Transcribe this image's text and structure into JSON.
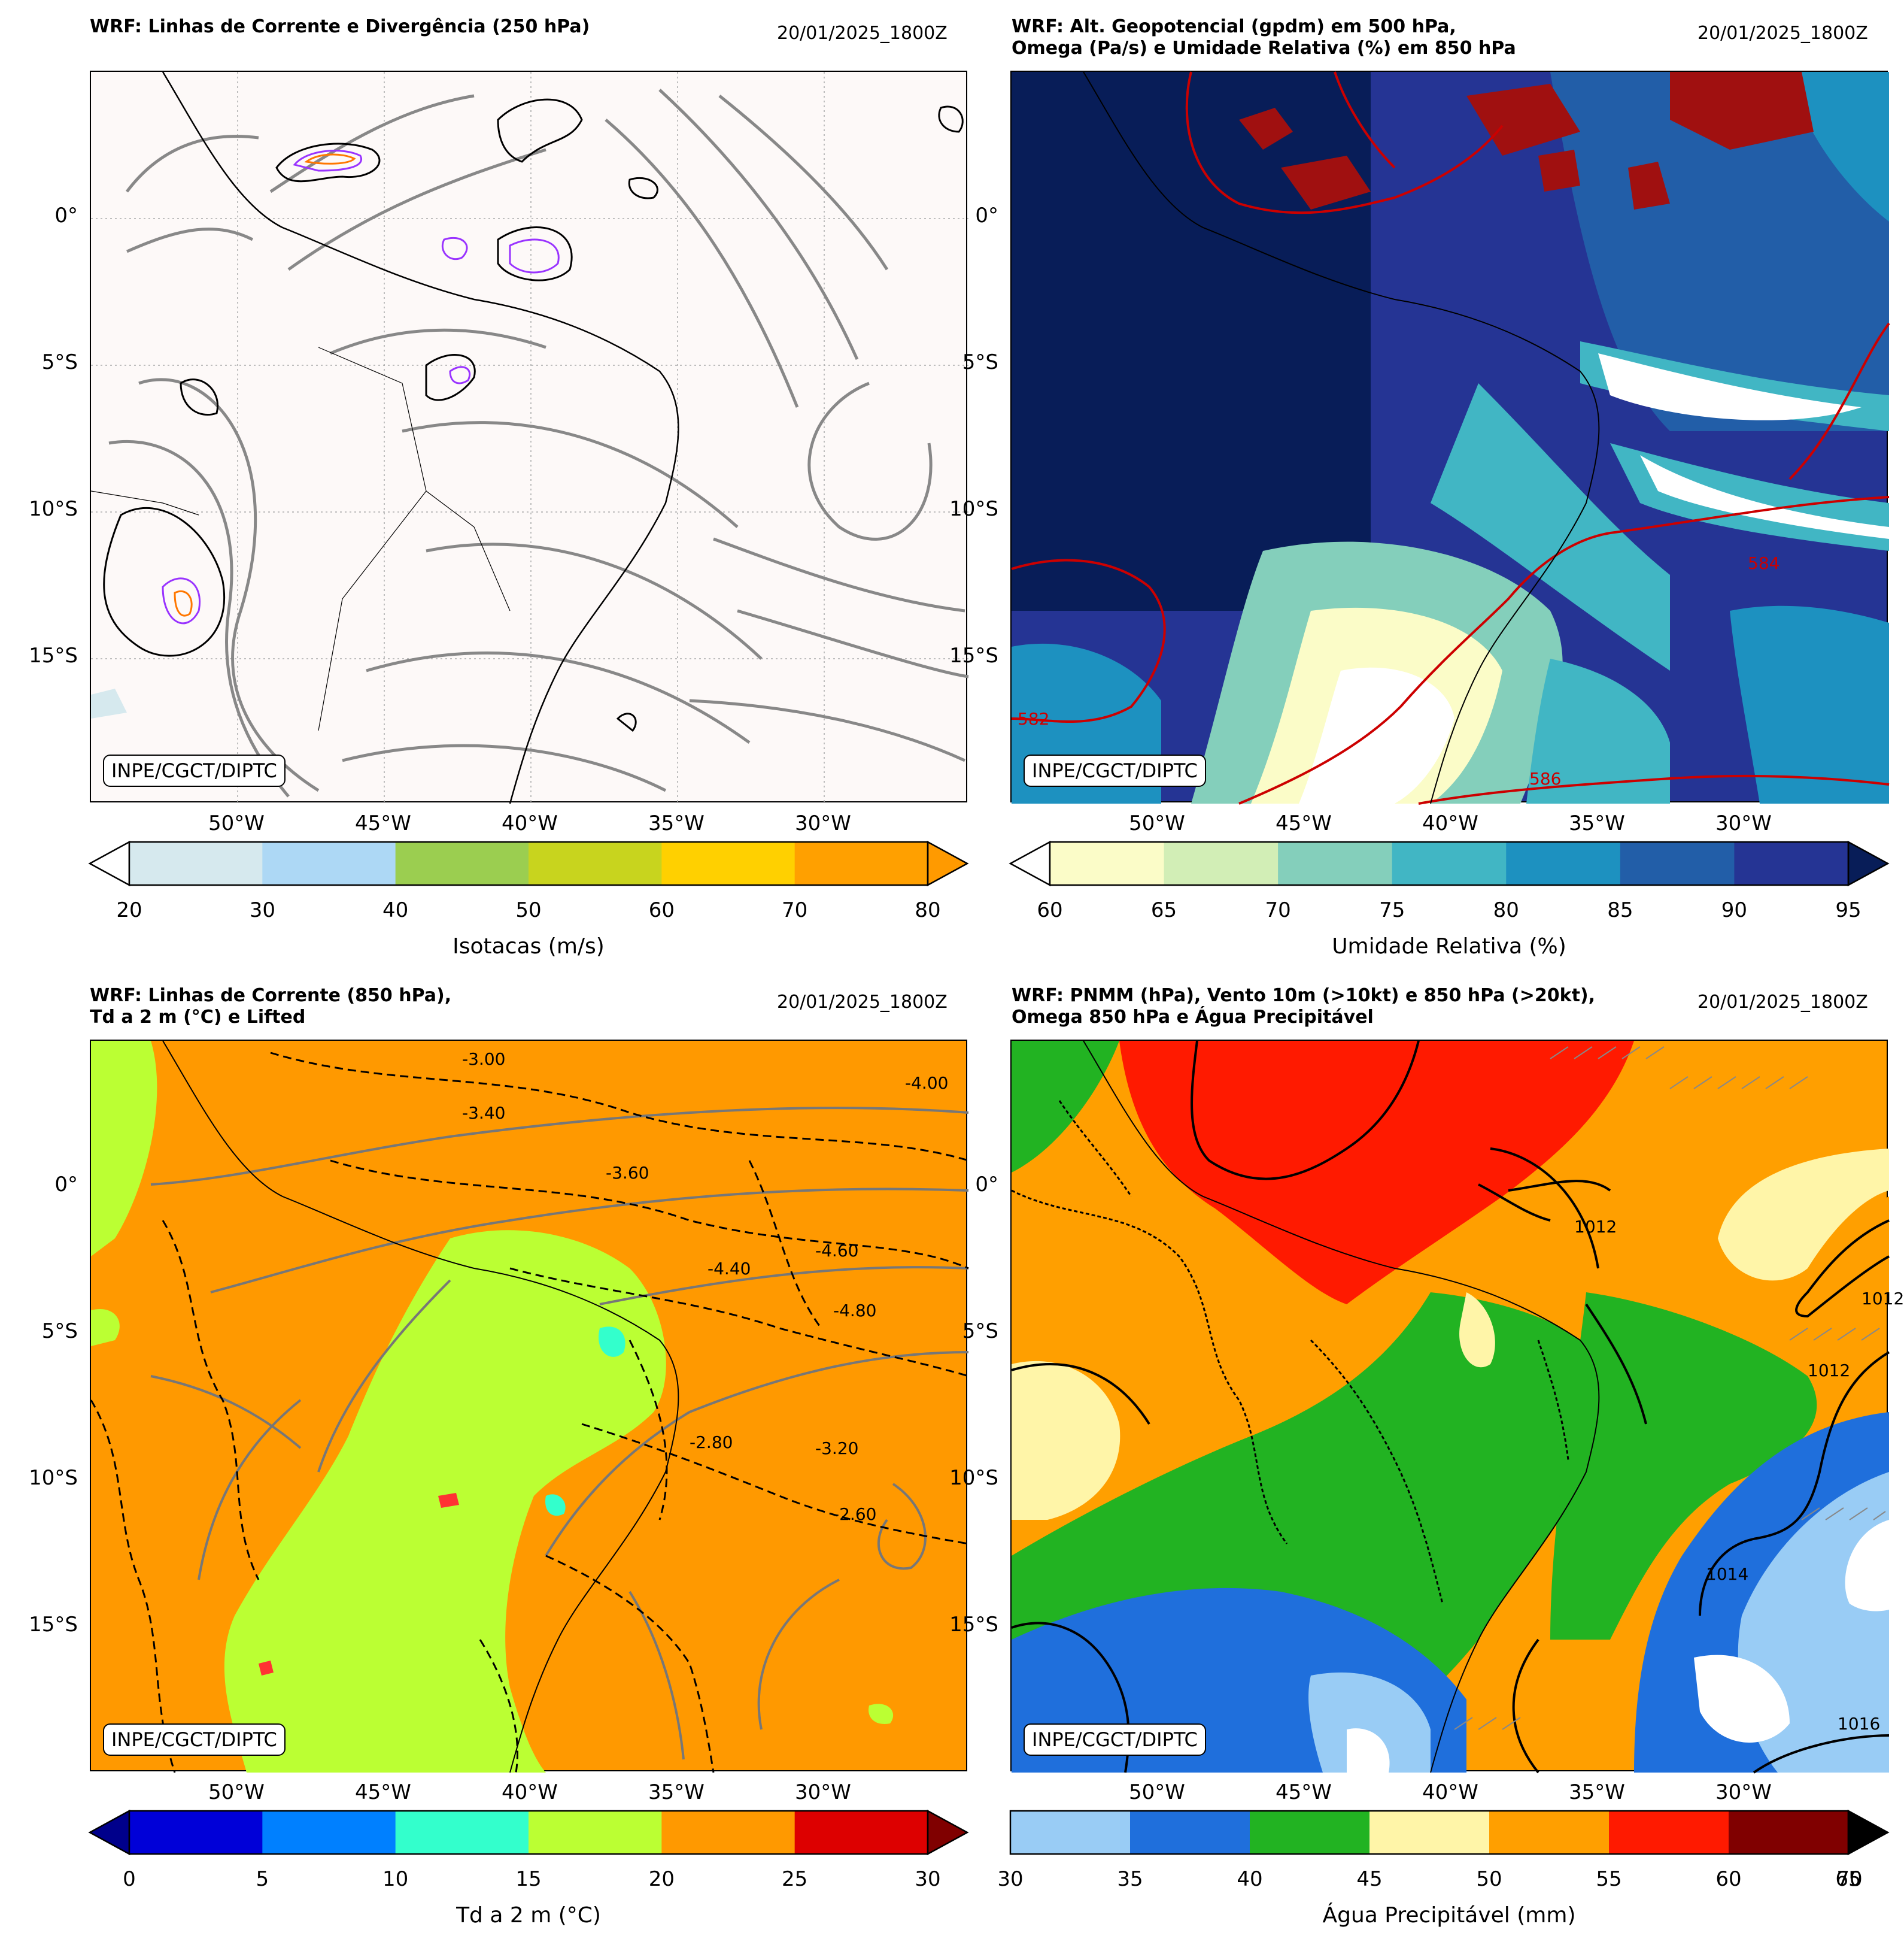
{
  "panels": [
    {
      "title_line1": "WRF: Linhas de Corrente e Divergência (250 hPa)",
      "title_line2": "",
      "date": "20/01/2025_1800Z",
      "watermark": "INPE/CGCT/DIPTC",
      "colorbar_label": "Isotacas (m/s)",
      "ticks": [
        "20",
        "30",
        "40",
        "50",
        "60",
        "70",
        "80"
      ],
      "colors": [
        "#d6e9ee",
        "#add8f5",
        "#9bce50",
        "#c8d41e",
        "#ffd000",
        "#ffa000"
      ],
      "extend_low": "#ffffff",
      "extend_high": "#ff9a00"
    },
    {
      "title_line1": "WRF: Alt. Geopotencial (gpdm) em 500 hPa,",
      "title_line2": "Omega (Pa/s) e Umidade Relativa (%) em 850 hPa",
      "date": "20/01/2025_1800Z",
      "watermark": "INPE/CGCT/DIPTC",
      "colorbar_label": "Umidade Relativa (%)",
      "ticks": [
        "60",
        "65",
        "70",
        "75",
        "80",
        "85",
        "90",
        "95"
      ],
      "colors": [
        "#fbfcc8",
        "#d2eeb6",
        "#84cfbb",
        "#41b6c4",
        "#1d91c0",
        "#225ea8",
        "#253494"
      ],
      "extend_low": "#ffffff",
      "extend_high": "#081d58",
      "contour_labels": [
        "584",
        "586",
        "582"
      ]
    },
    {
      "title_line1": "WRF: Linhas de Corrente (850 hPa),",
      "title_line2": "Td a 2 m (°C) e Lifted",
      "date": "20/01/2025_1800Z",
      "watermark": "INPE/CGCT/DIPTC",
      "colorbar_label": "Td a 2 m (°C)",
      "ticks": [
        "0",
        "5",
        "10",
        "15",
        "20",
        "25",
        "30"
      ],
      "colors": [
        "#0000d8",
        "#0080ff",
        "#33ffcc",
        "#bbff33",
        "#ff9900",
        "#dd0000"
      ],
      "extend_low": "#00008b",
      "extend_high": "#800000",
      "contour_labels": [
        "-3.00",
        "-2.80",
        "-3.40",
        "-4.00",
        "-4.40",
        "-4.60",
        "-4.80",
        "-3.20",
        "-3.60",
        "-2.60"
      ]
    },
    {
      "title_line1": "WRF: PNMM (hPa), Vento 10m (>10kt) e 850 hPa (>20kt),",
      "title_line2": "Omega 850 hPa e Água Precipitável",
      "date": "20/01/2025_1800Z",
      "watermark": "INPE/CGCT/DIPTC",
      "colorbar_label": "Água Precipitável (mm)",
      "ticks": [
        "30",
        "35",
        "40",
        "45",
        "50",
        "55",
        "60",
        "65"
      ],
      "tick_overlap": "70",
      "colors": [
        "#99ccf5",
        "#1f6fdc",
        "#22b322",
        "#fff5a8",
        "#ff9f00",
        "#ff1a00",
        "#800000"
      ],
      "extend_high": "#000000",
      "contour_labels": [
        "1012",
        "1012",
        "1012",
        "1014",
        "1016"
      ]
    }
  ],
  "axes": {
    "lat_labels": [
      "0°",
      "5°S",
      "10°S",
      "15°S"
    ],
    "lon_labels": [
      "50°W",
      "45°W",
      "40°W",
      "35°W",
      "30°W"
    ]
  }
}
